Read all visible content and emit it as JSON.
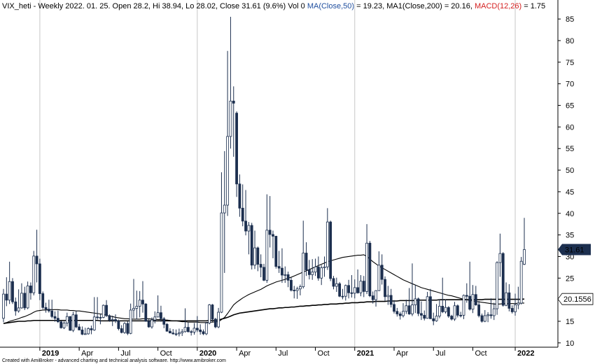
{
  "chart_data": {
    "type": "candlestick",
    "title": "VIX_heti - Weekly 2022. 01. 25. Open 28.2, Hi 38.94, Lo 28.02, Close 31.61 (9.6%) Vol 0",
    "ma50_readout": "= 19.23,",
    "ma200_readout": "= 20.16,",
    "macd_label": "MACD(12,26)",
    "macd_color": "#d42020",
    "macd_readout": "= 1.75",
    "footer": "Created with AmiBroker - advanced charting and technical analysis software. http://www.amibroker.com",
    "candle_color": "#1c2f4f",
    "year_lines": true,
    "ylim": [
      9,
      89.4
    ],
    "yticks": [
      10,
      15,
      20,
      25,
      30,
      35,
      40,
      45,
      50,
      55,
      60,
      65,
      70,
      75,
      80,
      85
    ],
    "categories": [
      null,
      null,
      null,
      null,
      null,
      null,
      null,
      null,
      null,
      null,
      null,
      null,
      "2019",
      null,
      null,
      null,
      null,
      null,
      null,
      null,
      null,
      null,
      null,
      null,
      null,
      "Apr",
      null,
      null,
      null,
      null,
      null,
      null,
      null,
      null,
      null,
      null,
      null,
      null,
      "Jul",
      null,
      null,
      null,
      null,
      null,
      null,
      null,
      null,
      null,
      null,
      null,
      null,
      "Oct",
      null,
      null,
      null,
      null,
      null,
      null,
      null,
      null,
      null,
      null,
      null,
      null,
      "2020",
      null,
      null,
      null,
      null,
      null,
      null,
      null,
      null,
      null,
      null,
      null,
      null,
      "Apr",
      null,
      null,
      null,
      null,
      null,
      null,
      null,
      null,
      null,
      null,
      null,
      null,
      "Jul",
      null,
      null,
      null,
      null,
      null,
      null,
      null,
      null,
      null,
      null,
      null,
      null,
      "Oct",
      null,
      null,
      null,
      null,
      null,
      null,
      null,
      null,
      null,
      null,
      null,
      null,
      "2021",
      null,
      null,
      null,
      null,
      null,
      null,
      null,
      null,
      null,
      null,
      null,
      null,
      "Apr",
      null,
      null,
      null,
      null,
      null,
      null,
      null,
      null,
      null,
      null,
      null,
      null,
      "Jul",
      null,
      null,
      null,
      null,
      null,
      null,
      null,
      null,
      null,
      null,
      null,
      null,
      "Oct",
      null,
      null,
      null,
      null,
      null,
      null,
      null,
      null,
      null,
      null,
      null,
      null,
      null,
      "2022",
      null,
      null,
      null
    ],
    "open": [
      15.7,
      21.3,
      19.9,
      24.2,
      19.5,
      17.4,
      18.1,
      21.5,
      18.1,
      23.2,
      21.6,
      30.1,
      28.3,
      21.4,
      18.2,
      17.8,
      17.4,
      16.1,
      15.7,
      14.9,
      13.5,
      14.6,
      16.1,
      12.9,
      16.5,
      13.7,
      13.0,
      12.0,
      12.1,
      13.3,
      13.0,
      16.0,
      15.9,
      15.9,
      18.7,
      16.3,
      15.3,
      15.4,
      15.1,
      13.3,
      12.4,
      14.5,
      12.2,
      17.6,
      18.0,
      18.5,
      19.9,
      19.0,
      15.0,
      13.7,
      15.3,
      16.0,
      17.0,
      15.6,
      14.3,
      12.7,
      12.3,
      12.1,
      12.1,
      12.3,
      12.6,
      13.6,
      12.6,
      12.5,
      13.4,
      13.0,
      12.6,
      12.1,
      14.6,
      18.8,
      15.5,
      13.7,
      17.1,
      40.1,
      41.9,
      57.8,
      66.0,
      63.2,
      46.8,
      41.2,
      38.2,
      35.9,
      37.2,
      28.0,
      32.0,
      28.2,
      27.5,
      24.5,
      36.1,
      35.1,
      34.7,
      27.7,
      27.3,
      25.7,
      25.8,
      24.5,
      22.2,
      22.1,
      22.5,
      23.0,
      30.8,
      26.9,
      25.8,
      26.4,
      27.6,
      25.0,
      27.4,
      27.6,
      38.0,
      24.9,
      23.1,
      23.7,
      20.8,
      20.8,
      23.3,
      21.6,
      21.5,
      22.8,
      21.6,
      24.3,
      21.9,
      33.1,
      20.9,
      20.0,
      22.1,
      28.0,
      24.7,
      20.7,
      21.0,
      18.9,
      17.3,
      16.7,
      16.3,
      17.3,
      18.6,
      16.7,
      18.8,
      20.2,
      16.8,
      16.4,
      15.7,
      20.7,
      15.6,
      15.1,
      16.2,
      18.5,
      17.2,
      18.2,
      16.2,
      15.5,
      18.6,
      16.4,
      16.4,
      21.0,
      20.8,
      17.8,
      21.2,
      18.8,
      16.3,
      15.0,
      16.3,
      16.5,
      16.3,
      17.9,
      28.6,
      30.7,
      18.7,
      21.6,
      18.0,
      17.2,
      18.8,
      19.2,
      28.2
    ],
    "high": [
      22.5,
      25.2,
      28.8,
      25.0,
      20.5,
      22.4,
      23.8,
      23.0,
      24.2,
      24.0,
      31.3,
      36.2,
      29.5,
      21.9,
      19.3,
      20.0,
      20.0,
      17.3,
      17.5,
      15.1,
      15.0,
      17.0,
      16.2,
      17.2,
      17.4,
      14.4,
      13.8,
      13.5,
      13.6,
      14.0,
      20.6,
      20.6,
      16.8,
      18.9,
      19.9,
      16.6,
      16.3,
      16.6,
      15.4,
      14.1,
      14.8,
      15.0,
      19.1,
      24.8,
      22.1,
      22.0,
      24.3,
      19.2,
      15.6,
      15.9,
      17.3,
      21.0,
      18.6,
      16.0,
      14.6,
      13.4,
      13.2,
      13.1,
      13.3,
      13.2,
      18.0,
      14.7,
      13.0,
      14.6,
      16.2,
      14.3,
      13.1,
      14.8,
      19.0,
      19.0,
      15.8,
      18.1,
      49.5,
      54.4,
      77.6,
      85.5,
      69.4,
      63.6,
      49.0,
      46.7,
      45.4,
      38.0,
      37.8,
      36.0,
      32.3,
      30.5,
      28.3,
      44.4,
      44.0,
      36.0,
      34.8,
      31.3,
      31.9,
      27.7,
      26.5,
      25.2,
      23.2,
      23.0,
      23.5,
      38.3,
      33.3,
      29.2,
      29.4,
      29.5,
      30.0,
      28.0,
      30.0,
      41.2,
      38.3,
      25.5,
      25.1,
      24.1,
      22.5,
      23.5,
      24.6,
      25.7,
      24.7,
      27.0,
      25.7,
      25.5,
      37.5,
      33.6,
      21.9,
      22.2,
      31.2,
      30.5,
      25.4,
      23.2,
      22.5,
      19.9,
      18.1,
      17.2,
      19.2,
      20.0,
      22.7,
      28.4,
      23.5,
      20.5,
      19.6,
      17.5,
      21.8,
      22.5,
      17.0,
      19.0,
      20.1,
      25.1,
      20.1,
      18.5,
      16.5,
      19.5,
      18.9,
      17.2,
      21.2,
      23.8,
      28.8,
      23.4,
      23.2,
      19.7,
      16.8,
      17.6,
      17.1,
      20.3,
      19.3,
      28.9,
      35.3,
      31.0,
      24.0,
      23.6,
      18.7,
      21.4,
      23.0,
      29.9,
      38.94
    ],
    "low": [
      14.8,
      18.5,
      19.0,
      19.0,
      16.3,
      17.0,
      17.9,
      17.6,
      17.8,
      20.0,
      21.0,
      24.0,
      19.9,
      17.8,
      17.0,
      17.0,
      15.7,
      14.9,
      14.6,
      13.3,
      13.2,
      13.8,
      12.8,
      12.5,
      13.4,
      12.9,
      11.8,
      11.9,
      11.9,
      12.0,
      12.8,
      15.4,
      14.3,
      15.7,
      16.0,
      14.9,
      13.9,
      14.6,
      12.9,
      12.2,
      12.1,
      11.8,
      12.0,
      15.7,
      15.4,
      15.9,
      17.0,
      14.9,
      13.5,
      13.3,
      14.5,
      15.9,
      14.9,
      13.4,
      12.6,
      12.2,
      11.9,
      11.6,
      11.5,
      11.6,
      12.4,
      12.4,
      11.7,
      11.9,
      12.5,
      11.9,
      11.8,
      11.8,
      14.3,
      14.9,
      13.4,
      13.4,
      16.9,
      26.2,
      39.4,
      55.0,
      53.1,
      43.8,
      39.2,
      37.0,
      34.9,
      30.5,
      27.0,
      27.1,
      26.6,
      25.2,
      24.3,
      23.9,
      32.1,
      29.6,
      27.2,
      26.2,
      23.9,
      23.9,
      22.9,
      21.9,
      20.3,
      20.2,
      21.0,
      22.6,
      25.5,
      24.7,
      24.6,
      25.5,
      24.4,
      23.4,
      25.3,
      26.9,
      24.3,
      22.4,
      21.8,
      20.6,
      20.1,
      19.8,
      20.3,
      20.5,
      20.3,
      21.4,
      20.8,
      20.6,
      21.3,
      20.6,
      19.1,
      18.4,
      22.0,
      23.5,
      19.7,
      18.8,
      18.2,
      16.8,
      16.1,
      15.4,
      15.9,
      16.7,
      16.5,
      16.2,
      16.9,
      16.2,
      15.3,
      15.2,
      15.6,
      15.5,
      14.1,
      14.9,
      15.7,
      16.9,
      16.8,
      15.8,
      15.2,
      15.1,
      15.9,
      15.9,
      15.5,
      19.3,
      17.5,
      16.9,
      18.6,
      15.9,
      14.7,
      14.8,
      14.8,
      15.6,
      15.3,
      16.5,
      25.3,
      18.4,
      18.5,
      17.3,
      16.8,
      16.3,
      17.8,
      18.9,
      28.02
    ],
    "close": [
      21.3,
      19.9,
      24.2,
      19.5,
      17.4,
      18.1,
      21.5,
      18.1,
      23.2,
      21.6,
      30.1,
      28.3,
      21.4,
      18.2,
      17.8,
      17.4,
      16.1,
      15.7,
      14.9,
      13.5,
      14.6,
      16.1,
      12.9,
      16.5,
      13.7,
      13.0,
      12.0,
      12.1,
      13.3,
      13.0,
      16.0,
      15.9,
      15.9,
      18.7,
      16.3,
      15.3,
      15.4,
      15.1,
      13.3,
      12.4,
      14.5,
      12.2,
      17.6,
      18.0,
      18.5,
      19.9,
      19.0,
      15.0,
      13.7,
      15.3,
      16.0,
      17.0,
      15.6,
      14.3,
      12.7,
      12.3,
      12.1,
      12.1,
      12.3,
      12.6,
      13.6,
      12.6,
      12.5,
      13.4,
      13.0,
      12.6,
      12.1,
      14.6,
      18.8,
      15.5,
      13.7,
      17.1,
      40.1,
      41.9,
      57.8,
      66.0,
      65.5,
      46.8,
      41.2,
      38.2,
      35.9,
      37.2,
      28.0,
      32.0,
      28.2,
      27.5,
      24.5,
      36.1,
      35.1,
      34.7,
      27.7,
      27.3,
      25.7,
      25.8,
      24.5,
      22.2,
      22.1,
      22.5,
      23.0,
      30.8,
      26.9,
      25.8,
      26.4,
      27.6,
      25.0,
      27.4,
      27.6,
      38.0,
      24.9,
      23.1,
      23.7,
      20.8,
      20.8,
      23.3,
      21.6,
      21.5,
      22.8,
      21.6,
      24.3,
      21.9,
      33.1,
      20.9,
      20.0,
      22.1,
      28.0,
      24.7,
      20.7,
      21.0,
      18.9,
      17.3,
      16.7,
      16.3,
      17.3,
      18.6,
      16.7,
      18.8,
      20.2,
      16.8,
      16.4,
      15.7,
      20.7,
      15.6,
      15.1,
      16.2,
      18.5,
      17.2,
      18.2,
      16.2,
      15.5,
      18.6,
      16.4,
      16.4,
      21.0,
      20.8,
      17.8,
      21.2,
      18.8,
      16.3,
      15.0,
      16.3,
      16.5,
      16.3,
      17.9,
      28.6,
      30.7,
      18.7,
      21.6,
      18.0,
      17.2,
      18.8,
      19.2,
      28.9,
      31.61
    ],
    "lines": [
      {
        "name": "MA(Close,50)",
        "label_color": "#1f4e9e",
        "color": "#000000",
        "values": [
          14.5,
          14.7,
          15.0,
          15.2,
          15.4,
          15.6,
          15.9,
          16.1,
          16.4,
          16.7,
          17.1,
          17.4,
          17.5,
          17.6,
          17.6,
          17.7,
          17.7,
          17.7,
          17.7,
          17.6,
          17.6,
          17.6,
          17.5,
          17.5,
          17.4,
          17.4,
          17.3,
          17.2,
          17.1,
          17.0,
          16.9,
          16.8,
          16.7,
          16.6,
          16.4,
          16.2,
          16.1,
          15.9,
          15.8,
          15.7,
          15.6,
          15.6,
          15.5,
          15.5,
          15.5,
          15.5,
          15.6,
          15.6,
          15.6,
          15.5,
          15.5,
          15.4,
          15.4,
          15.3,
          15.3,
          15.2,
          15.1,
          15.1,
          15.0,
          14.9,
          14.9,
          14.8,
          14.8,
          14.8,
          14.8,
          14.7,
          14.7,
          14.7,
          14.8,
          14.8,
          14.9,
          14.9,
          15.4,
          15.9,
          16.8,
          17.8,
          18.8,
          19.4,
          19.9,
          20.4,
          20.8,
          21.2,
          21.5,
          21.8,
          22.1,
          22.4,
          22.8,
          23.2,
          23.5,
          23.8,
          24.1,
          24.3,
          24.5,
          24.7,
          25.0,
          25.2,
          25.5,
          25.8,
          26.1,
          26.4,
          26.7,
          27.0,
          27.3,
          27.6,
          27.9,
          28.2,
          28.5,
          28.8,
          29.0,
          29.2,
          29.4,
          29.6,
          29.8,
          29.9,
          30.0,
          30.1,
          30.2,
          30.3,
          30.3,
          30.4,
          30.0,
          29.4,
          28.8,
          28.3,
          27.8,
          27.4,
          27.0,
          26.6,
          26.2,
          25.8,
          25.4,
          25.0,
          24.6,
          24.3,
          24.0,
          23.7,
          23.4,
          23.1,
          22.8,
          22.6,
          22.4,
          22.2,
          22.0,
          21.8,
          21.6,
          21.4,
          21.2,
          21.0,
          20.9,
          20.7,
          20.5,
          20.3,
          20.1,
          20.0,
          19.8,
          19.7,
          19.6,
          19.5,
          19.4,
          19.3,
          19.2,
          19.1,
          19.0,
          19.0,
          19.0,
          19.1,
          19.1,
          19.1,
          19.1,
          19.1,
          19.2,
          19.2,
          19.23
        ]
      },
      {
        "name": "MA1(Close,200)",
        "label_color": "#000000",
        "color": "#000000",
        "values": [
          14.5,
          14.6,
          14.7,
          14.8,
          14.9,
          15.0,
          15.0,
          15.0,
          15.1,
          15.1,
          15.2,
          15.2,
          15.2,
          15.2,
          15.2,
          15.2,
          15.2,
          15.2,
          15.2,
          15.2,
          15.2,
          15.2,
          15.2,
          15.2,
          15.2,
          15.2,
          15.2,
          15.2,
          15.2,
          15.2,
          15.2,
          15.2,
          15.1,
          15.1,
          15.1,
          15.1,
          15.1,
          15.1,
          15.1,
          15.1,
          15.1,
          15.1,
          15.1,
          15.1,
          15.1,
          15.1,
          15.1,
          15.1,
          15.1,
          15.1,
          15.1,
          15.1,
          15.1,
          15.1,
          15.1,
          15.1,
          15.1,
          15.1,
          15.1,
          15.1,
          15.1,
          15.1,
          15.1,
          15.1,
          15.1,
          15.1,
          15.1,
          15.1,
          15.2,
          15.2,
          15.2,
          15.3,
          15.5,
          15.7,
          15.9,
          16.2,
          16.5,
          16.7,
          16.9,
          17.0,
          17.1,
          17.2,
          17.3,
          17.4,
          17.5,
          17.6,
          17.7,
          17.8,
          17.9,
          17.9,
          18.0,
          18.1,
          18.1,
          18.2,
          18.2,
          18.3,
          18.3,
          18.4,
          18.5,
          18.5,
          18.6,
          18.6,
          18.7,
          18.7,
          18.8,
          18.8,
          18.9,
          18.9,
          19.0,
          19.0,
          19.0,
          19.1,
          19.1,
          19.2,
          19.2,
          19.3,
          19.3,
          19.3,
          19.4,
          19.4,
          19.5,
          19.5,
          19.5,
          19.6,
          19.6,
          19.6,
          19.6,
          19.7,
          19.7,
          19.7,
          19.7,
          19.8,
          19.8,
          19.8,
          19.8,
          19.8,
          19.8,
          19.9,
          19.9,
          19.9,
          19.9,
          19.9,
          19.9,
          19.9,
          20.0,
          20.0,
          20.0,
          20.0,
          20.0,
          20.0,
          20.0,
          20.0,
          20.0,
          20.0,
          20.0,
          20.0,
          20.0,
          20.0,
          20.0,
          20.1,
          20.1,
          20.1,
          20.1,
          20.1,
          20.1,
          20.1,
          20.1,
          20.1,
          20.1,
          20.1,
          20.1,
          20.1,
          20.1556
        ]
      }
    ]
  }
}
